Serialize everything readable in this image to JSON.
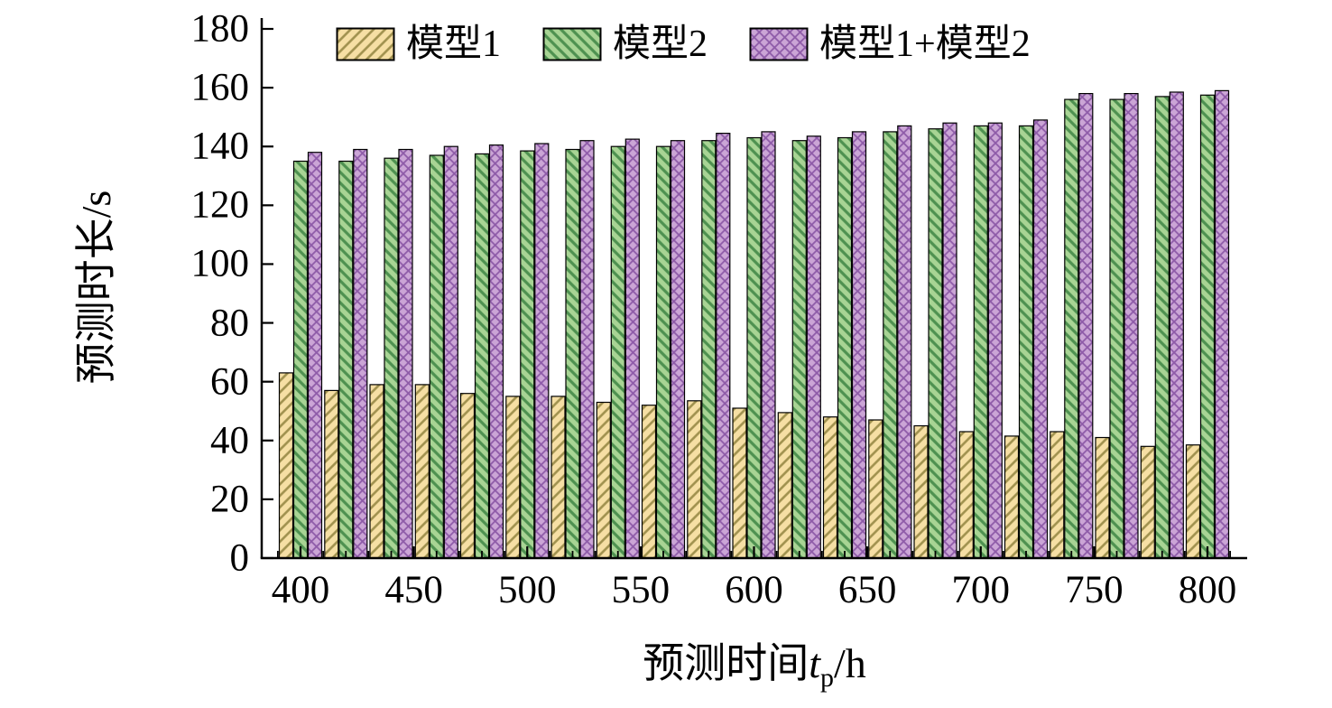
{
  "figure": {
    "background": "#ffffff"
  },
  "chart_data": {
    "type": "bar",
    "title": "",
    "xlabel": "预测时间tp/h",
    "xlabel_parts": {
      "prefix": "预测时间",
      "variable": "t",
      "subscript": "p",
      "suffix": "/h"
    },
    "ylabel": "预测时长/s",
    "x": [
      400,
      420,
      440,
      460,
      480,
      500,
      520,
      540,
      560,
      580,
      600,
      620,
      640,
      660,
      680,
      700,
      720,
      740,
      760,
      780,
      800
    ],
    "xticks": [
      400,
      450,
      500,
      550,
      600,
      650,
      700,
      750,
      800
    ],
    "yticks": [
      0,
      20,
      40,
      60,
      80,
      100,
      120,
      140,
      160,
      180
    ],
    "ylim": [
      0,
      180
    ],
    "grid": false,
    "legend_position": "top-inside",
    "bar_group_step_h": 20,
    "series": [
      {
        "name": "模型1",
        "fill": "#F6DFA4",
        "hatch": "forward-diagonal",
        "hatch_color": "#A0914E",
        "values": [
          63,
          57,
          59,
          59,
          56,
          55,
          55,
          53,
          52,
          53.5,
          51,
          49.5,
          48,
          47,
          45,
          43,
          41.5,
          43,
          41,
          38,
          38.5
        ]
      },
      {
        "name": "模型2",
        "fill": "#A8D494",
        "hatch": "backward-diagonal",
        "hatch_color": "#4E9150",
        "values": [
          135,
          135,
          136,
          137,
          137.5,
          138.5,
          139,
          140,
          140,
          142,
          143,
          142,
          143,
          145,
          146,
          147,
          147,
          156,
          156,
          157,
          157.5
        ]
      },
      {
        "name": "模型1+模型2",
        "fill": "#CBA5D6",
        "hatch": "cross-diagonal",
        "hatch_color": "#8E5BA8",
        "values": [
          138,
          139,
          139,
          140,
          140.5,
          141,
          142,
          142.5,
          142,
          144.5,
          145,
          143.5,
          145,
          147,
          148,
          148,
          149,
          158,
          158,
          158.5,
          159
        ]
      }
    ]
  }
}
